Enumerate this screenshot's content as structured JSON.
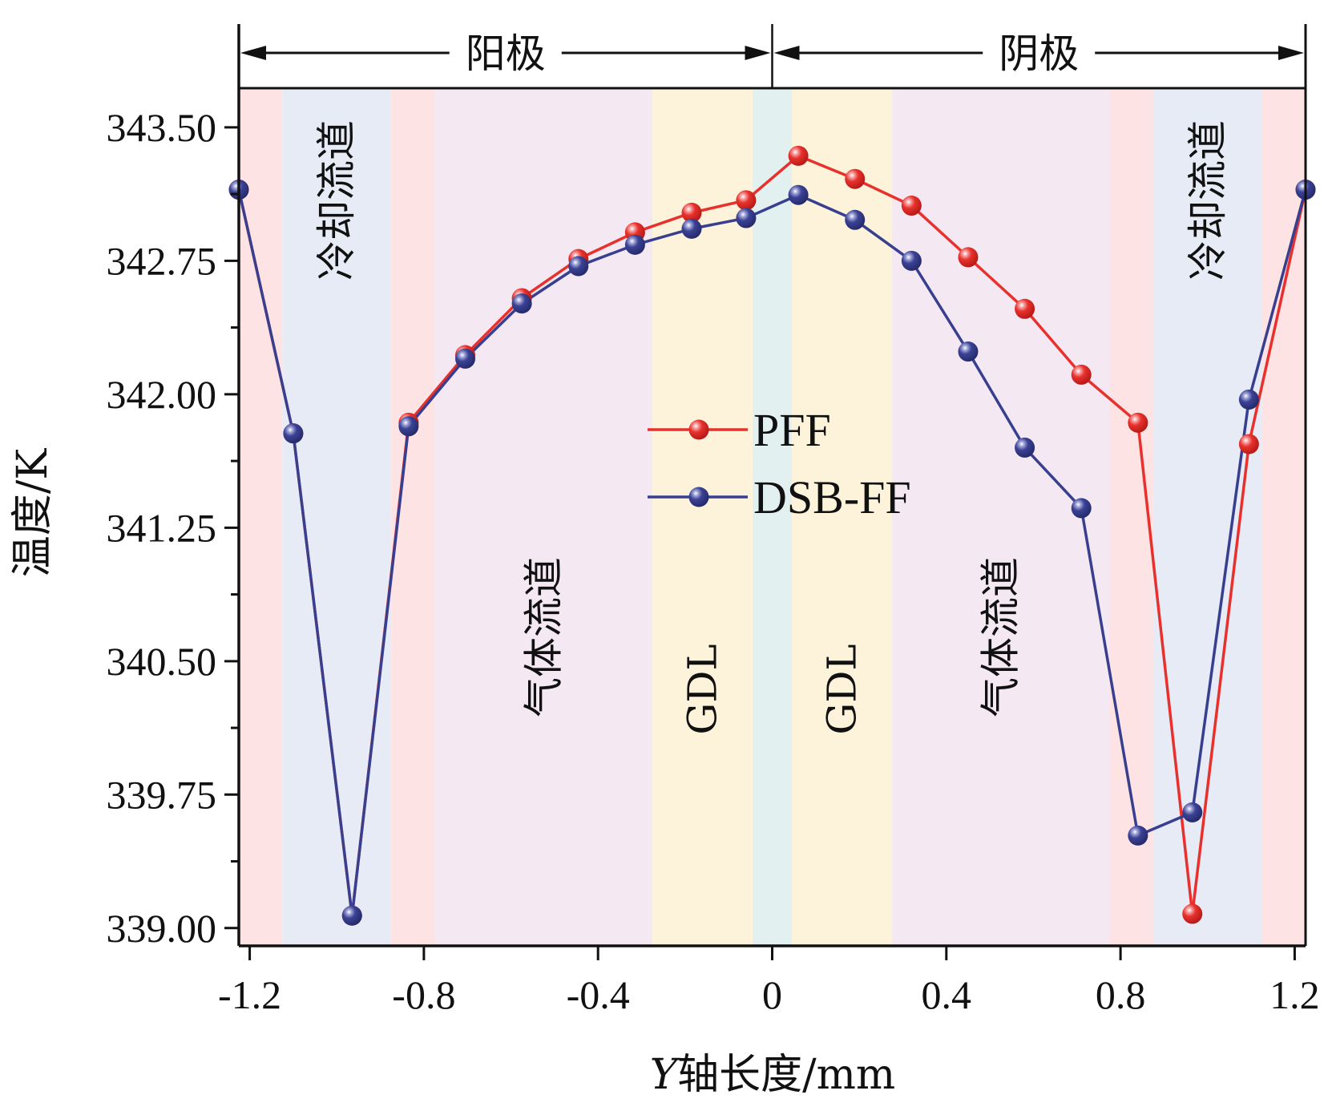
{
  "chart_data": {
    "type": "line",
    "title": "",
    "xlabel_italic": "Y",
    "xlabel_rest": "轴长度/mm",
    "ylabel": "温度/K",
    "xlim": [
      -1.225,
      1.225
    ],
    "ylim": [
      338.9,
      343.72
    ],
    "x_ticks": [
      -1.2,
      -0.8,
      -0.4,
      0,
      0.4,
      0.8,
      1.2
    ],
    "x_tick_labels": [
      "-1.2",
      "-0.8",
      "-0.4",
      "0",
      "0.4",
      "0.8",
      "1.2"
    ],
    "y_ticks": [
      339.0,
      339.75,
      340.5,
      341.25,
      342.0,
      342.75,
      343.5
    ],
    "y_tick_labels": [
      "339.00",
      "339.75",
      "340.50",
      "341.25",
      "342.00",
      "342.75",
      "343.50"
    ],
    "y_minor_step": 0.375,
    "grid": false,
    "legend_position": "center",
    "top_brackets": [
      {
        "label": "阳极",
        "from": -1.225,
        "to": 0
      },
      {
        "label": "阴极",
        "from": 0,
        "to": 1.225
      }
    ],
    "regions": [
      {
        "from": -1.225,
        "to": -1.125,
        "color": "#fde3e4",
        "label": ""
      },
      {
        "from": -1.125,
        "to": -0.875,
        "color": "#e6ebf5",
        "label": "冷却流道",
        "label_pos": "top"
      },
      {
        "from": -0.875,
        "to": -0.775,
        "color": "#fde3e4",
        "label": ""
      },
      {
        "from": -0.775,
        "to": -0.275,
        "color": "#f4e8f3",
        "label": "气体流道",
        "label_pos": "middle"
      },
      {
        "from": -0.275,
        "to": -0.045,
        "color": "#fdf3da",
        "label": "GDL",
        "label_pos": "lower"
      },
      {
        "from": -0.045,
        "to": 0.045,
        "color": "#e2f1f0",
        "label": ""
      },
      {
        "from": 0.045,
        "to": 0.275,
        "color": "#fdf3da",
        "label": "GDL",
        "label_pos": "lower"
      },
      {
        "from": 0.275,
        "to": 0.775,
        "color": "#f4e8f3",
        "label": "气体流道",
        "label_pos": "middle"
      },
      {
        "from": 0.775,
        "to": 0.875,
        "color": "#fde3e4",
        "label": ""
      },
      {
        "from": 0.875,
        "to": 1.125,
        "color": "#e6ebf5",
        "label": "冷却流道",
        "label_pos": "top"
      },
      {
        "from": 1.125,
        "to": 1.225,
        "color": "#fde3e4",
        "label": ""
      }
    ],
    "x": [
      -1.225,
      -1.1,
      -0.965,
      -0.835,
      -0.705,
      -0.575,
      -0.445,
      -0.315,
      -0.185,
      -0.06,
      0.06,
      0.19,
      0.32,
      0.45,
      0.58,
      0.71,
      0.84,
      0.965,
      1.095,
      1.225
    ],
    "series": [
      {
        "name": "PFF",
        "color": "#e8312c",
        "values": [
          343.15,
          341.78,
          339.07,
          341.84,
          342.22,
          342.54,
          342.76,
          342.91,
          343.02,
          343.09,
          343.34,
          343.21,
          343.06,
          342.77,
          342.48,
          342.11,
          341.84,
          339.08,
          341.72,
          343.15
        ]
      },
      {
        "name": "DSB-FF",
        "color": "#383f8f",
        "values": [
          343.15,
          341.78,
          339.07,
          341.82,
          342.2,
          342.51,
          342.72,
          342.84,
          342.93,
          342.99,
          343.12,
          342.98,
          342.75,
          342.24,
          341.7,
          341.36,
          339.52,
          339.65,
          341.97,
          343.15
        ]
      }
    ]
  }
}
